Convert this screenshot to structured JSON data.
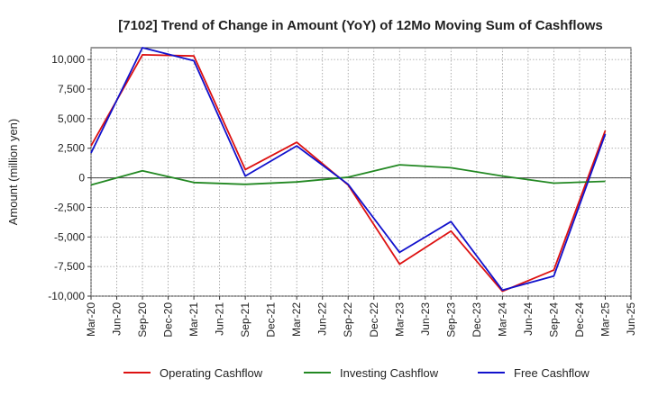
{
  "chart_data": {
    "type": "line",
    "title": "[7102]  Trend of Change in Amount (YoY) of 12Mo Moving Sum of Cashflows",
    "xlabel": "",
    "ylabel": "Amount (million yen)",
    "ylim": [
      -10000,
      11000
    ],
    "yticks": [
      10000,
      7500,
      5000,
      2500,
      0,
      -2500,
      -5000,
      -7500,
      -10000
    ],
    "ytick_labels": [
      "10,000",
      "7,500",
      "5,000",
      "2,500",
      "0",
      "-2,500",
      "-5,000",
      "-7,500",
      "-10,000"
    ],
    "categories": [
      "Mar-20",
      "Jun-20",
      "Sep-20",
      "Dec-20",
      "Mar-21",
      "Jun-21",
      "Sep-21",
      "Dec-21",
      "Mar-22",
      "Jun-22",
      "Sep-22",
      "Dec-22",
      "Mar-23",
      "Jun-23",
      "Sep-23",
      "Dec-23",
      "Mar-24",
      "Jun-24",
      "Sep-24",
      "Dec-24",
      "Mar-25",
      "Jun-25"
    ],
    "grid": true,
    "legend_position": "bottom",
    "series": [
      {
        "name": "Operating Cashflow",
        "color": "#dd1111",
        "values": [
          2700,
          null,
          10400,
          null,
          10300,
          null,
          700,
          null,
          3000,
          null,
          -600,
          null,
          -7300,
          null,
          -4500,
          null,
          -9600,
          null,
          -7800,
          null,
          4000,
          null
        ]
      },
      {
        "name": "Investing Cashflow",
        "color": "#228822",
        "values": [
          -600,
          null,
          600,
          null,
          -400,
          null,
          -550,
          null,
          -350,
          null,
          50,
          null,
          1100,
          null,
          850,
          null,
          150,
          null,
          -450,
          null,
          -300,
          null
        ]
      },
      {
        "name": "Free Cashflow",
        "color": "#1111cc",
        "values": [
          2100,
          null,
          11000,
          null,
          9900,
          null,
          150,
          null,
          2700,
          null,
          -550,
          null,
          -6300,
          null,
          -3700,
          null,
          -9500,
          null,
          -8300,
          null,
          3700,
          null
        ]
      }
    ]
  }
}
